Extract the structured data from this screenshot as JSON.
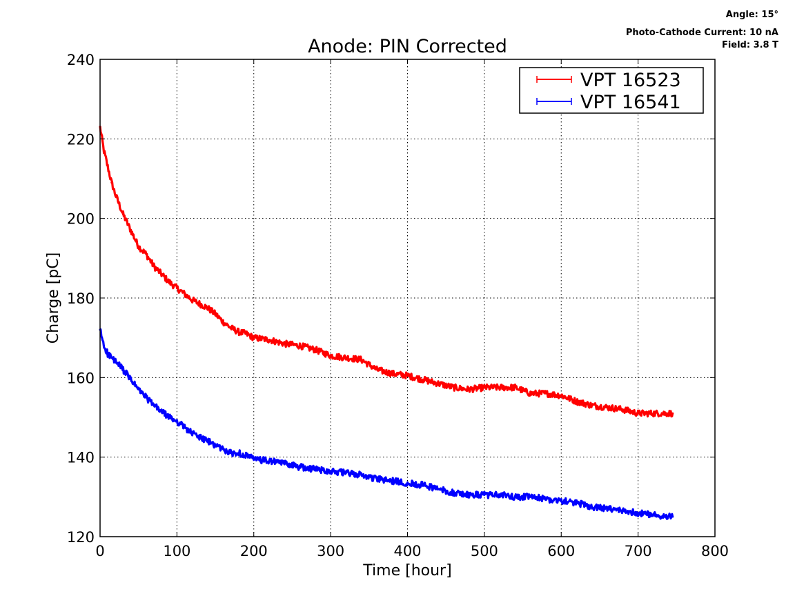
{
  "chart_data": {
    "type": "line",
    "title": "Anode: PIN Corrected",
    "xlabel": "Time [hour]",
    "ylabel": "Charge [pC]",
    "xlim": [
      0,
      800
    ],
    "ylim": [
      120,
      240
    ],
    "xticks": [
      0,
      100,
      200,
      300,
      400,
      500,
      600,
      700,
      800
    ],
    "yticks": [
      120,
      140,
      160,
      180,
      200,
      220,
      240
    ],
    "grid": true,
    "legend_position": "top-right",
    "annotations": {
      "angle": "Angle: 15°",
      "current": "Photo-Cathode Current: 10 nA",
      "field": "Field: 3.8 T"
    },
    "series": [
      {
        "name": "VPT 16523",
        "color": "#ff0000",
        "x": [
          0,
          5,
          10,
          15,
          20,
          30,
          40,
          50,
          60,
          70,
          80,
          90,
          100,
          110,
          120,
          130,
          140,
          150,
          160,
          170,
          180,
          190,
          200,
          220,
          240,
          260,
          280,
          300,
          320,
          340,
          360,
          380,
          400,
          420,
          440,
          460,
          480,
          500,
          520,
          540,
          560,
          580,
          600,
          620,
          640,
          660,
          680,
          700,
          720,
          745
        ],
        "values": [
          223,
          217,
          213,
          209,
          206,
          201,
          197,
          193,
          191,
          188,
          186,
          184,
          182.5,
          181,
          179.5,
          178.5,
          177.5,
          176,
          174,
          172.5,
          171.5,
          171,
          170,
          169.5,
          168.5,
          168,
          167,
          165.5,
          165,
          164.5,
          162,
          161,
          160.5,
          159.5,
          158.5,
          157.5,
          157,
          157.5,
          157.5,
          157.5,
          156,
          156,
          155.5,
          154,
          153,
          152.5,
          152,
          151,
          151,
          151
        ]
      },
      {
        "name": "VPT 16541",
        "color": "#0000ff",
        "x": [
          0,
          5,
          10,
          15,
          20,
          30,
          40,
          50,
          60,
          70,
          80,
          90,
          100,
          110,
          120,
          130,
          140,
          150,
          160,
          170,
          180,
          190,
          200,
          220,
          240,
          260,
          280,
          300,
          320,
          340,
          360,
          380,
          400,
          420,
          440,
          460,
          480,
          500,
          520,
          540,
          560,
          580,
          600,
          620,
          640,
          660,
          680,
          700,
          720,
          745
        ],
        "values": [
          172,
          168,
          166,
          165,
          164,
          162,
          159.5,
          157,
          155,
          153,
          151.5,
          150,
          149,
          147.5,
          146,
          145,
          144,
          143,
          142,
          141,
          141,
          140.5,
          139.5,
          139,
          138.5,
          137.5,
          137,
          136.5,
          136,
          135.5,
          134.5,
          134,
          133.5,
          133,
          132,
          131,
          130.5,
          130.5,
          130.5,
          130,
          130,
          129.5,
          129,
          128.5,
          127.5,
          127,
          126.5,
          126,
          125.5,
          125
        ]
      }
    ]
  }
}
